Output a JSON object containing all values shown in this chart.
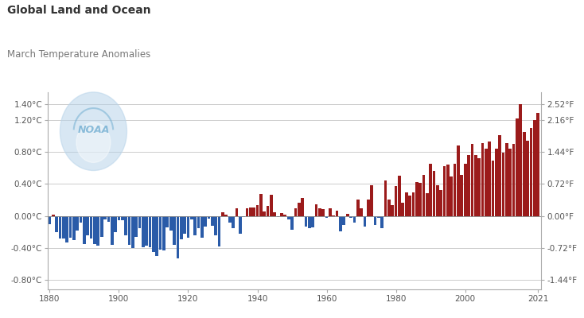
{
  "title1": "Global Land and Ocean",
  "title2": "March Temperature Anomalies",
  "bar_color_positive": "#9B1B1B",
  "bar_color_negative": "#2A5BA8",
  "background_color": "#FFFFFF",
  "grid_color": "#CCCCCC",
  "title1_color": "#333333",
  "title2_color": "#777777",
  "yticks_left_vals": [
    -0.8,
    -0.4,
    0.0,
    0.4,
    0.8,
    1.2,
    1.4
  ],
  "yticks_left_labels": [
    "-0.80°C",
    "-0.40°C",
    "0.00°C",
    "0.40°C",
    "0.80°C",
    "1.20°C",
    "1.40°C"
  ],
  "yticks_right_c": [
    -0.8,
    -0.4,
    0.0,
    0.4,
    0.8,
    1.2,
    1.4
  ],
  "yticks_right_labels": [
    "-1.44°F",
    "-0.72°F",
    "0.00°F",
    "0.72°F",
    "1.44°F",
    "2.16°F",
    "2.52°F"
  ],
  "xtick_positions": [
    1880,
    1900,
    1920,
    1940,
    1960,
    1980,
    2000,
    2021
  ],
  "ylim_min": -0.92,
  "ylim_max": 1.55,
  "xmin": 1879.5,
  "xmax": 2022.0,
  "noaa_color": "#B8D4EA",
  "noaa_text_color": "#6AAACF",
  "years": [
    1880,
    1881,
    1882,
    1883,
    1884,
    1885,
    1886,
    1887,
    1888,
    1889,
    1890,
    1891,
    1892,
    1893,
    1894,
    1895,
    1896,
    1897,
    1898,
    1899,
    1900,
    1901,
    1902,
    1903,
    1904,
    1905,
    1906,
    1907,
    1908,
    1909,
    1910,
    1911,
    1912,
    1913,
    1914,
    1915,
    1916,
    1917,
    1918,
    1919,
    1920,
    1921,
    1922,
    1923,
    1924,
    1925,
    1926,
    1927,
    1928,
    1929,
    1930,
    1931,
    1932,
    1933,
    1934,
    1935,
    1936,
    1937,
    1938,
    1939,
    1940,
    1941,
    1942,
    1943,
    1944,
    1945,
    1946,
    1947,
    1948,
    1949,
    1950,
    1951,
    1952,
    1953,
    1954,
    1955,
    1956,
    1957,
    1958,
    1959,
    1960,
    1961,
    1962,
    1963,
    1964,
    1965,
    1966,
    1967,
    1968,
    1969,
    1970,
    1971,
    1972,
    1973,
    1974,
    1975,
    1976,
    1977,
    1978,
    1979,
    1980,
    1981,
    1982,
    1983,
    1984,
    1985,
    1986,
    1987,
    1988,
    1989,
    1990,
    1991,
    1992,
    1993,
    1994,
    1995,
    1996,
    1997,
    1998,
    1999,
    2000,
    2001,
    2002,
    2003,
    2004,
    2005,
    2006,
    2007,
    2008,
    2009,
    2010,
    2011,
    2012,
    2013,
    2014,
    2015,
    2016,
    2017,
    2018,
    2019,
    2020,
    2021
  ],
  "anomalies": [
    -0.1,
    0.02,
    -0.2,
    -0.28,
    -0.28,
    -0.33,
    -0.27,
    -0.3,
    -0.18,
    -0.08,
    -0.35,
    -0.24,
    -0.28,
    -0.35,
    -0.37,
    -0.26,
    -0.04,
    -0.07,
    -0.36,
    -0.2,
    -0.05,
    -0.05,
    -0.24,
    -0.36,
    -0.4,
    -0.26,
    -0.15,
    -0.39,
    -0.37,
    -0.39,
    -0.45,
    -0.5,
    -0.42,
    -0.43,
    -0.14,
    -0.18,
    -0.36,
    -0.53,
    -0.29,
    -0.22,
    -0.27,
    -0.04,
    -0.24,
    -0.15,
    -0.27,
    -0.13,
    -0.03,
    -0.12,
    -0.24,
    -0.38,
    0.05,
    0.02,
    -0.08,
    -0.15,
    0.1,
    -0.22,
    -0.01,
    0.1,
    0.11,
    0.11,
    0.14,
    0.28,
    0.06,
    0.13,
    0.27,
    0.05,
    -0.01,
    0.04,
    0.02,
    -0.04,
    -0.17,
    0.1,
    0.17,
    0.23,
    -0.13,
    -0.15,
    -0.14,
    0.15,
    0.1,
    0.09,
    -0.02,
    0.1,
    0.01,
    0.07,
    -0.19,
    -0.11,
    0.03,
    -0.02,
    -0.08,
    0.21,
    0.1,
    -0.13,
    0.21,
    0.38,
    -0.11,
    -0.02,
    -0.15,
    0.44,
    0.21,
    0.14,
    0.37,
    0.5,
    0.17,
    0.3,
    0.26,
    0.3,
    0.42,
    0.41,
    0.51,
    0.29,
    0.65,
    0.56,
    0.38,
    0.32,
    0.62,
    0.64,
    0.49,
    0.65,
    0.88,
    0.51,
    0.65,
    0.76,
    0.9,
    0.76,
    0.72,
    0.91,
    0.84,
    0.93,
    0.69,
    0.84,
    1.01,
    0.79,
    0.91,
    0.84,
    0.9,
    1.22,
    1.4,
    1.05,
    0.94,
    1.1,
    1.2,
    1.29
  ]
}
